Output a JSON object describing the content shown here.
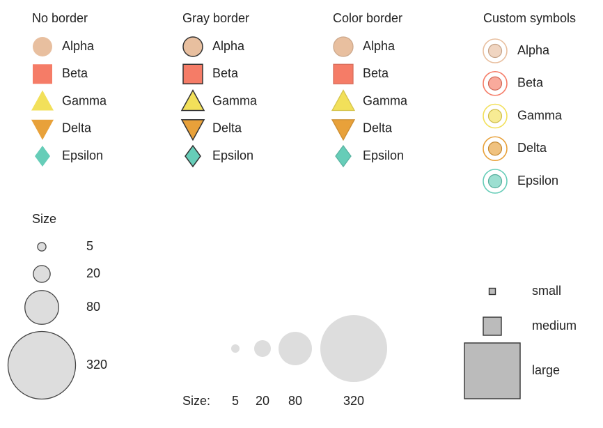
{
  "chart_data": [
    {
      "type": "legend",
      "title": "No border",
      "border": "none",
      "items": [
        {
          "label": "Alpha",
          "symbol": "circle",
          "color": "#e8bf9f"
        },
        {
          "label": "Beta",
          "symbol": "square",
          "color": "#f57c67"
        },
        {
          "label": "Gamma",
          "symbol": "triangle-up",
          "color": "#f2e05a"
        },
        {
          "label": "Delta",
          "symbol": "triangle-down",
          "color": "#e8a13a"
        },
        {
          "label": "Epsilon",
          "symbol": "diamond",
          "color": "#66cdb8"
        }
      ]
    },
    {
      "type": "legend",
      "title": "Gray border",
      "border": "gray",
      "items": [
        {
          "label": "Alpha",
          "symbol": "circle",
          "color": "#e8bf9f"
        },
        {
          "label": "Beta",
          "symbol": "square",
          "color": "#f57c67"
        },
        {
          "label": "Gamma",
          "symbol": "triangle-up",
          "color": "#f2e05a"
        },
        {
          "label": "Delta",
          "symbol": "triangle-down",
          "color": "#e8a13a"
        },
        {
          "label": "Epsilon",
          "symbol": "diamond",
          "color": "#66cdb8"
        }
      ]
    },
    {
      "type": "legend",
      "title": "Color border",
      "border": "color",
      "items": [
        {
          "label": "Alpha",
          "symbol": "circle",
          "color": "#e8bf9f"
        },
        {
          "label": "Beta",
          "symbol": "square",
          "color": "#f57c67"
        },
        {
          "label": "Gamma",
          "symbol": "triangle-up",
          "color": "#f2e05a"
        },
        {
          "label": "Delta",
          "symbol": "triangle-down",
          "color": "#e8a13a"
        },
        {
          "label": "Epsilon",
          "symbol": "diamond",
          "color": "#66cdb8"
        }
      ]
    },
    {
      "type": "legend",
      "title": "Custom symbols",
      "border": "ring",
      "items": [
        {
          "label": "Alpha",
          "symbol": "ring-circle",
          "color": "#e8bf9f"
        },
        {
          "label": "Beta",
          "symbol": "ring-circle",
          "color": "#f57c67"
        },
        {
          "label": "Gamma",
          "symbol": "ring-circle",
          "color": "#f2e05a"
        },
        {
          "label": "Delta",
          "symbol": "ring-circle",
          "color": "#e8a13a"
        },
        {
          "label": "Epsilon",
          "symbol": "ring-circle",
          "color": "#66cdb8"
        }
      ]
    },
    {
      "type": "size-legend",
      "title": "Size",
      "orientation": "vertical",
      "symbol": "circle",
      "fill": "#dddddd",
      "stroke": "#444444",
      "values": [
        5,
        20,
        80,
        320
      ],
      "labels": [
        "5",
        "20",
        "80",
        "320"
      ]
    },
    {
      "type": "size-legend",
      "title": "Size:",
      "orientation": "horizontal",
      "symbol": "circle",
      "fill": "#dddddd",
      "stroke": "none",
      "values": [
        5,
        20,
        80,
        320
      ],
      "labels": [
        "5",
        "20",
        "80",
        "320"
      ]
    },
    {
      "type": "size-legend",
      "title": "",
      "orientation": "vertical",
      "symbol": "square",
      "fill": "#bbbbbb",
      "stroke": "#333333",
      "values": [
        1,
        4,
        16
      ],
      "labels": [
        "small",
        "medium",
        "large"
      ]
    }
  ]
}
